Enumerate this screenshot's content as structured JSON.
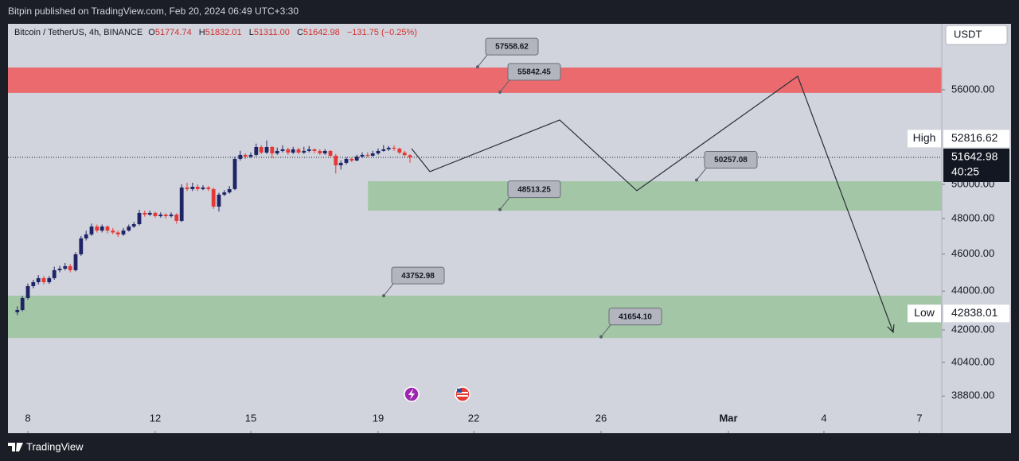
{
  "header": {
    "publisher": "Bitpin published on TradingView.com, Feb 20, 2024 06:49 UTC+3:30",
    "brand": "TradingView"
  },
  "chart_data": {
    "type": "candlestick",
    "symbol": "Bitcoin / TetherUS, 4h, BINANCE",
    "ohlc_legend": [
      {
        "key": "O",
        "text": "51774.74"
      },
      {
        "key": "H",
        "text": "51832.01"
      },
      {
        "key": "L",
        "text": "51311.00"
      },
      {
        "key": "C",
        "text": "51642.98"
      }
    ],
    "change": "−131.75 (−0.25%)",
    "currency": "USDT",
    "log": true,
    "candles": {
      "up_color": "#1f2466",
      "down_color": "#e53935",
      "x": [
        7.67,
        7.83,
        8,
        8.17,
        8.33,
        8.5,
        8.67,
        8.83,
        9,
        9.17,
        9.33,
        9.5,
        9.67,
        9.83,
        10,
        10.17,
        10.33,
        10.5,
        10.67,
        10.83,
        11,
        11.17,
        11.33,
        11.5,
        11.67,
        11.83,
        12,
        12.17,
        12.33,
        12.5,
        12.67,
        12.83,
        13,
        13.17,
        13.33,
        13.5,
        13.67,
        13.83,
        14,
        14.17,
        14.33,
        14.5,
        14.67,
        14.83,
        15,
        15.17,
        15.33,
        15.5,
        15.67,
        15.83,
        16,
        16.17,
        16.33,
        16.5,
        16.67,
        16.83,
        17,
        17.17,
        17.33,
        17.5,
        17.67,
        17.83,
        18,
        18.17,
        18.33,
        18.5,
        18.67,
        18.83,
        19,
        19.17,
        19.33,
        19.5,
        19.67,
        19.83,
        20
      ],
      "open": [
        42900,
        43014,
        43636,
        44262,
        44470,
        44688,
        44470,
        44688,
        45114,
        45198,
        45332,
        45114,
        45982,
        46866,
        47090,
        47538,
        47309,
        47538,
        47309,
        47200,
        47090,
        47309,
        47538,
        47673,
        48316,
        48222,
        48316,
        48132,
        48222,
        48132,
        48222,
        47858,
        49812,
        49717,
        49857,
        49717,
        49812,
        49717,
        48686,
        49386,
        49521,
        49717,
        51548,
        51794,
        51694,
        51794,
        52287,
        51940,
        52287,
        51890,
        52041,
        52142,
        51940,
        52142,
        51940,
        52041,
        52142,
        52041,
        51890,
        52041,
        51744,
        51156,
        51302,
        51548,
        51450,
        51694,
        51794,
        51744,
        51890,
        52041,
        52142,
        52242,
        52186,
        51940,
        51774.74
      ],
      "high": [
        43200,
        43750,
        44400,
        44600,
        44850,
        44800,
        44800,
        45300,
        45350,
        45500,
        45450,
        46100,
        47000,
        47300,
        47700,
        47650,
        47650,
        47600,
        47450,
        47300,
        47450,
        47650,
        47800,
        48500,
        48450,
        48450,
        48400,
        48350,
        48300,
        48350,
        48300,
        50000,
        50100,
        50100,
        50000,
        49950,
        49900,
        49800,
        49500,
        49650,
        49900,
        51700,
        52050,
        51900,
        51950,
        52500,
        52400,
        52700,
        52350,
        52250,
        52400,
        52250,
        52300,
        52250,
        52300,
        52350,
        52200,
        52150,
        52150,
        52100,
        51850,
        51450,
        51650,
        51650,
        51800,
        51950,
        51950,
        52050,
        52200,
        52400,
        52350,
        52400,
        52250,
        52050,
        51832.01
      ],
      "low": [
        42750,
        42950,
        43550,
        44150,
        44350,
        44350,
        44380,
        44600,
        45000,
        45100,
        45000,
        45050,
        45900,
        46750,
        47000,
        47200,
        47200,
        47150,
        47100,
        46950,
        47000,
        47250,
        47450,
        47600,
        48100,
        48150,
        48050,
        48050,
        48000,
        48050,
        47700,
        47800,
        49600,
        49600,
        49600,
        49650,
        49600,
        48550,
        48400,
        49300,
        49450,
        49650,
        51450,
        51550,
        51600,
        51700,
        51850,
        51850,
        51600,
        51800,
        51950,
        51800,
        51850,
        51850,
        51850,
        51950,
        51900,
        51800,
        51800,
        51650,
        50650,
        50900,
        51200,
        51350,
        51400,
        51600,
        51650,
        51700,
        51800,
        52000,
        52050,
        52050,
        51850,
        51700,
        51311
      ],
      "close": [
        43014,
        43636,
        44262,
        44470,
        44688,
        44470,
        44688,
        45114,
        45198,
        45332,
        45114,
        45982,
        46866,
        47090,
        47538,
        47309,
        47538,
        47309,
        47200,
        47090,
        47309,
        47538,
        47673,
        48316,
        48222,
        48316,
        48132,
        48222,
        48132,
        48222,
        47858,
        49812,
        49717,
        49857,
        49717,
        49812,
        49717,
        48686,
        49386,
        49521,
        49717,
        51548,
        51794,
        51694,
        51794,
        52287,
        51940,
        52287,
        51890,
        52041,
        52142,
        51940,
        52142,
        51940,
        52041,
        52142,
        52041,
        51890,
        52041,
        51744,
        51156,
        51302,
        51548,
        51450,
        51694,
        51794,
        51744,
        51890,
        52041,
        52142,
        52242,
        52186,
        51940,
        51780,
        51642.98
      ]
    },
    "xlim": [
      7.375,
      36.7
    ],
    "xticks": [
      8,
      12,
      15,
      19,
      22,
      26,
      {
        "value": 30,
        "label": "Mar"
      },
      {
        "value": 33,
        "label": "4"
      },
      {
        "value": 36,
        "label": "7"
      }
    ],
    "ylim": [
      37290,
      60600
    ],
    "yticks": [
      {
        "value": 56000,
        "label": "56000.00"
      },
      {
        "value": 50000,
        "label": "50000.00"
      },
      {
        "value": 48000,
        "label": "48000.00"
      },
      {
        "value": 46000,
        "label": "46000.00"
      },
      {
        "value": 44000,
        "label": "44000.00"
      },
      {
        "value": 42000,
        "label": "42000.00"
      },
      {
        "value": 40400,
        "label": "40400.00"
      },
      {
        "value": 38800,
        "label": "38800.00"
      }
    ],
    "price_labels": [
      {
        "name": "High",
        "value": 52816.62
      },
      {
        "value": 51642.98,
        "countdown": "40:25"
      },
      {
        "name": "Low",
        "value": 42838.01
      }
    ],
    "zones": [
      {
        "color": "#ea6a6d",
        "x": [
          7.375,
          36.7
        ],
        "values": [
          55790,
          57510
        ]
      },
      {
        "color": "#a3c7a6",
        "x": [
          18.68,
          36.7
        ],
        "values": [
          48450,
          50190
        ]
      },
      {
        "color": "#a3c7a6",
        "x": [
          7.375,
          36.7
        ],
        "values": [
          41600,
          43760
        ]
      }
    ],
    "annotations": [
      {
        "x": 22.125,
        "value": 57558.62
      },
      {
        "x": 22.825,
        "value": 55842.45
      },
      {
        "x": 29.0,
        "value": 50257.08
      },
      {
        "x": 22.825,
        "value": 48513.25
      },
      {
        "x": 19.175,
        "value": 43752.98
      },
      {
        "x": 26.0,
        "value": 41654.1,
        "label": "41654.10"
      }
    ],
    "projection": {
      "color": "#2a2e39",
      "x": [
        20.05,
        20.625,
        24.7,
        27.125,
        32.175,
        35.175
      ],
      "values": [
        52186,
        50770,
        54007,
        49622,
        56915,
        41882
      ]
    }
  }
}
